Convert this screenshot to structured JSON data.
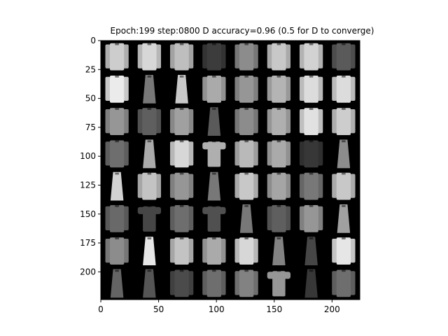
{
  "figure": {
    "title": "Epoch:199 step:0800 D accuracy=0.96 (0.5 for D to converge)",
    "background": "#ffffff",
    "image_background": "#000000"
  },
  "image_grid": {
    "rows": 8,
    "cols": 8,
    "tile_pixels": 28,
    "extent": [
      0,
      224
    ],
    "content": "grayscale generated clothing samples (shirts, pullovers, coats, dresses, t-shirts)"
  },
  "axes": {
    "x_ticks": [
      "0",
      "50",
      "100",
      "150",
      "200"
    ],
    "y_ticks": [
      "0",
      "25",
      "50",
      "75",
      "100",
      "125",
      "150",
      "175",
      "200"
    ]
  }
}
